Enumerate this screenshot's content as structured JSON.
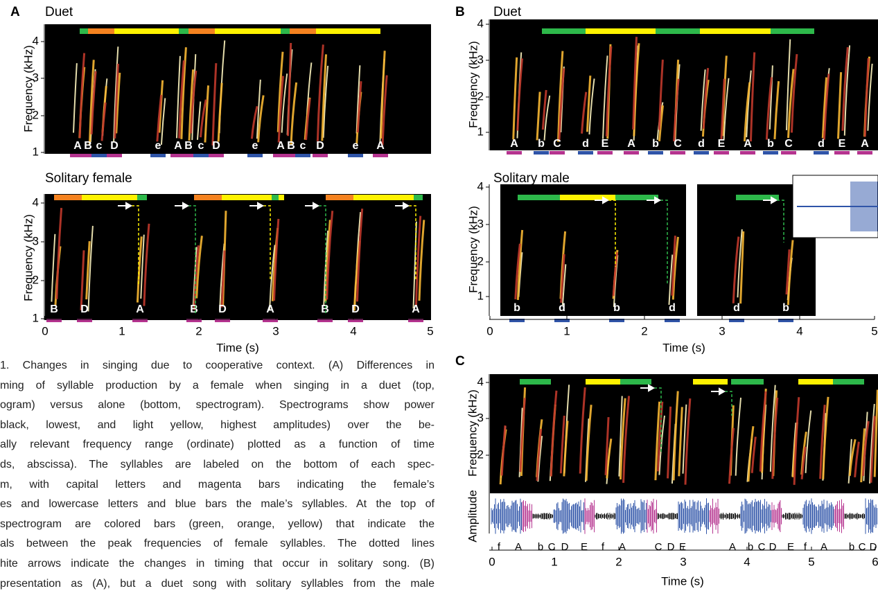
{
  "panels": [
    {
      "letter": "A",
      "title": "Duet",
      "y_axis_label": "Frequency (kHz)",
      "y_ticks": [
        1,
        2,
        3,
        4
      ],
      "syllables": [
        "A",
        "B",
        "c",
        "D",
        "e",
        "A",
        "B",
        "c",
        "D",
        "e",
        "A",
        "B",
        "c",
        "D",
        "e",
        "A"
      ]
    },
    {
      "title": "Solitary female",
      "y_axis_label": "Frequency (kHz)",
      "y_ticks": [
        1,
        2,
        3,
        4
      ],
      "syllables": [
        "B",
        "D",
        "A",
        "B",
        "D",
        "A",
        "B",
        "D",
        "A"
      ],
      "x_ticks": [
        0,
        1,
        2,
        3,
        4,
        5
      ],
      "x_axis_label": "Time (s)"
    },
    {
      "letter": "B",
      "title": "Duet",
      "y_axis_label": "Frequency (kHz)",
      "y_ticks": [
        1,
        2,
        3,
        4
      ],
      "syllables": [
        "A",
        "b",
        "C",
        "d",
        "E",
        "A",
        "b",
        "C",
        "d",
        "E",
        "A",
        "b",
        "C",
        "d",
        "E",
        "A"
      ]
    },
    {
      "title": "Solitary male",
      "y_axis_label": "Frequency (kHz)",
      "y_ticks": [
        1,
        2,
        3,
        4
      ],
      "syllables": [
        "b",
        "d",
        "b",
        "d",
        "d",
        "b"
      ],
      "x_ticks": [
        0,
        1,
        2,
        3,
        4,
        5
      ],
      "x_axis_label": "Time (s)"
    },
    {
      "letter": "C",
      "y_axis_label": "Frequency (kHz)",
      "amplitude_label": "Amplitude",
      "y_ticks": [
        2,
        3,
        4
      ],
      "syllables": [
        "f",
        "A",
        "b",
        "C",
        "D",
        "E",
        "f",
        "A",
        "C",
        "D",
        "E",
        "A",
        "b",
        "C",
        "D",
        "E",
        "f",
        "A",
        "b",
        "C",
        "D"
      ],
      "x_ticks": [
        0,
        1,
        2,
        3,
        4,
        5,
        6
      ],
      "x_axis_label": "Time (s)"
    }
  ],
  "caption": {
    "lines": [
      "1. Changes in singing due to cooperative context. (A) Differences in",
      "ming of syllable production by a female when singing in a duet (top,",
      "ogram) versus alone (bottom, spectrogram). Spectrograms show power",
      "black, lowest, and light yellow, highest amplitudes) over the be-",
      "ally relevant frequency range (ordinate) plotted as a function of time",
      "ds, abscissa). The syllables are labeled on the bottom of each spec-",
      "m, with capital letters and magenta bars indicating the female’s",
      "es and lowercase letters and blue bars the male’s syllables. At the top of",
      "spectrogram are colored bars (green, orange, yellow) that indicate the",
      "als between the peak frequencies of female syllables. The dotted lines",
      "hite arrows indicate the changes in timing that occur in solitary song. (B)",
      "presentation as (A), but a duet song with solitary syllables from the male"
    ]
  }
}
